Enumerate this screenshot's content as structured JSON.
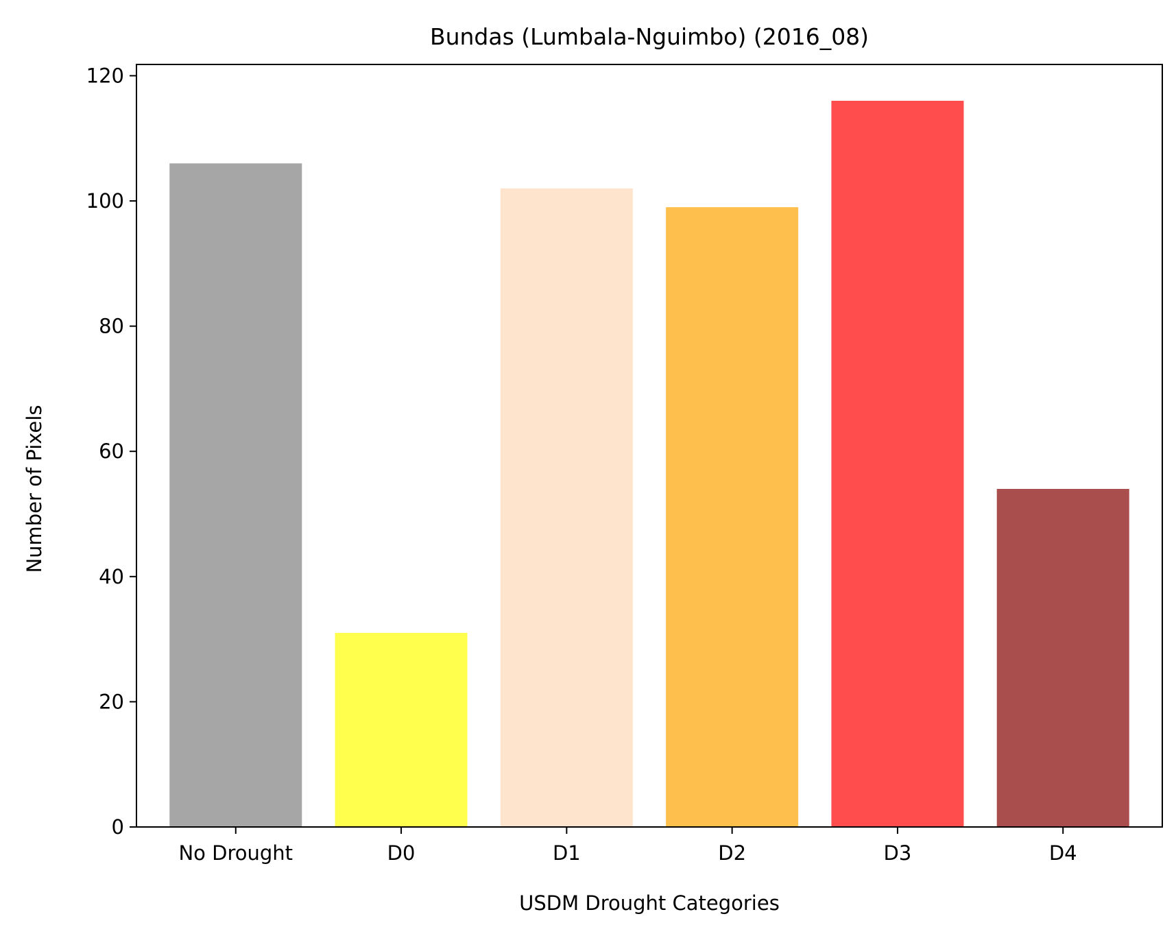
{
  "chart_data": {
    "type": "bar",
    "title": "Bundas (Lumbala-Nguimbo) (2016_08)",
    "xlabel": "USDM Drought Categories",
    "ylabel": "Number of Pixels",
    "categories": [
      "No Drought",
      "D0",
      "D1",
      "D2",
      "D3",
      "D4"
    ],
    "values": [
      106,
      31,
      102,
      99,
      116,
      54
    ],
    "colors": [
      "#a6a6a6",
      "#ffff4d",
      "#fee4cc",
      "#febf4d",
      "#ff4d4d",
      "#aa4d4d"
    ],
    "ylim": [
      0,
      121.8
    ],
    "yticks": [
      0,
      20,
      40,
      60,
      80,
      100,
      120
    ],
    "grid": false,
    "legend": "none"
  }
}
